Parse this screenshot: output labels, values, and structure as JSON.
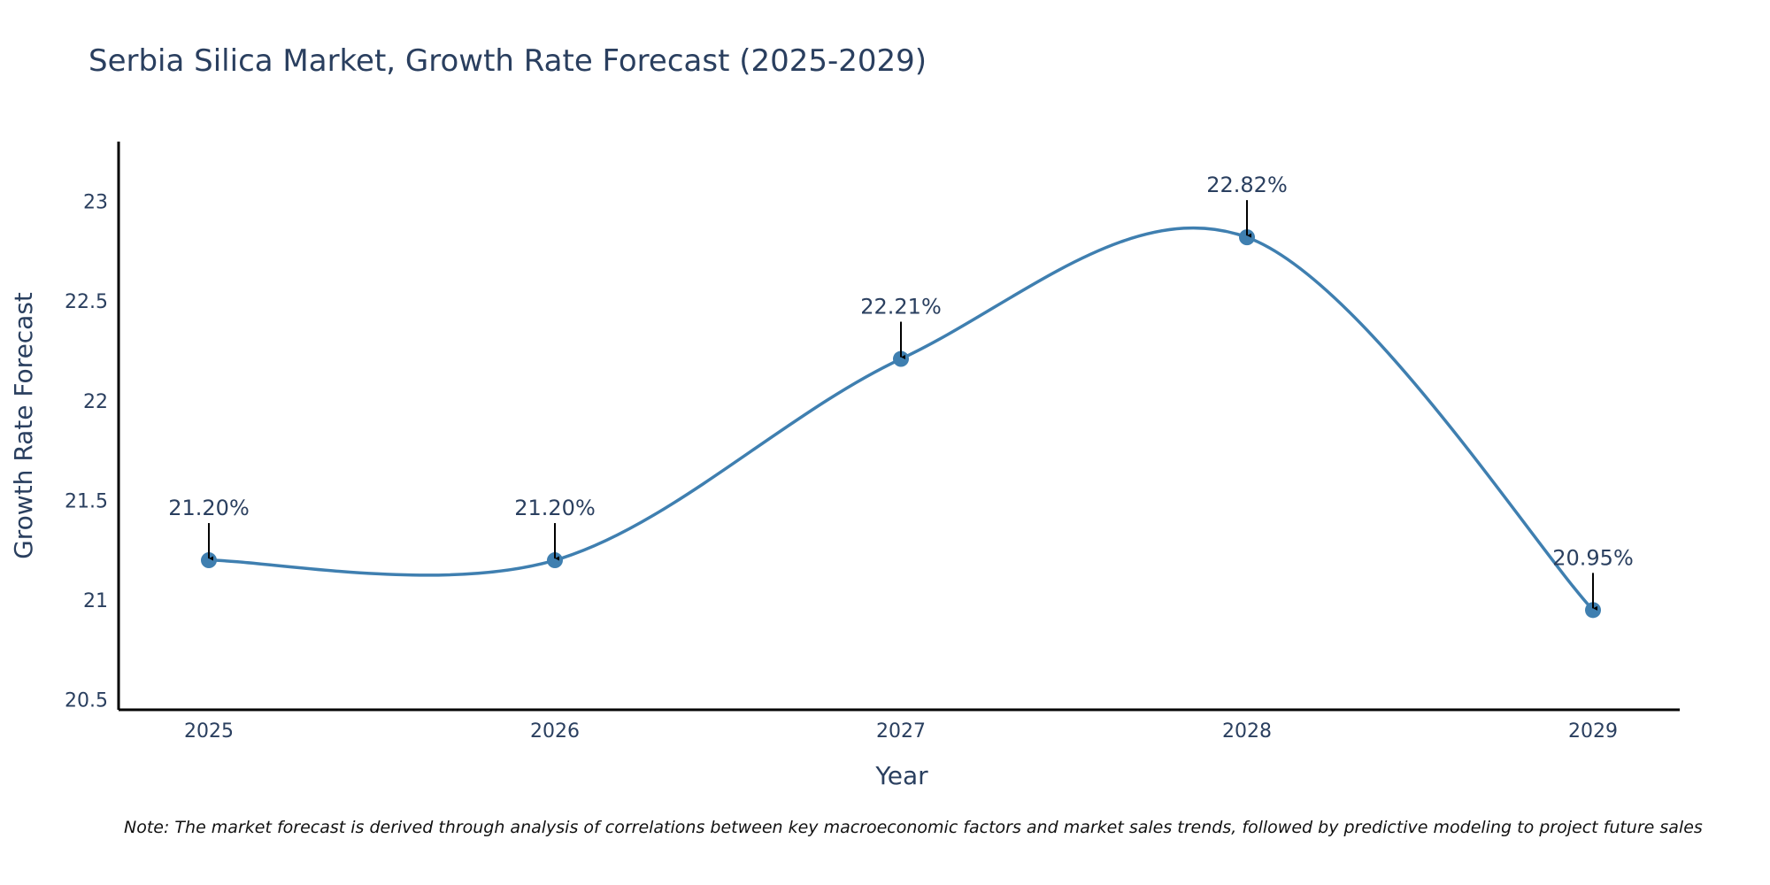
{
  "chart_data": {
    "type": "line",
    "title": "Serbia Silica Market, Growth Rate Forecast (2025-2029)",
    "xlabel": "Year",
    "ylabel": "Growth Rate Forecast",
    "categories": [
      "2025",
      "2026",
      "2027",
      "2028",
      "2029"
    ],
    "series": [
      {
        "name": "Growth Rate Forecast",
        "values": [
          21.2,
          21.2,
          22.21,
          22.82,
          20.95
        ],
        "labels": [
          "21.20%",
          "21.20%",
          "22.21%",
          "22.82%",
          "20.95%"
        ],
        "color": "#3f7fb0"
      }
    ],
    "ylim": [
      20.45,
      23.3
    ],
    "y_ticks": [
      20.5,
      21,
      21.5,
      22,
      22.5,
      23
    ],
    "y_tick_labels": [
      "20.5",
      "21",
      "21.5",
      "22",
      "22.5",
      "23"
    ],
    "grid": false,
    "line_shape": "spline",
    "note": "Note: The market forecast is derived through analysis of correlations between key macroeconomic factors and market sales trends, followed by predictive modeling to project future sales"
  },
  "colors": {
    "line": "#3f7fb0",
    "text": "#2a3f5f",
    "axis": "#000000",
    "arrow": "#000000"
  }
}
